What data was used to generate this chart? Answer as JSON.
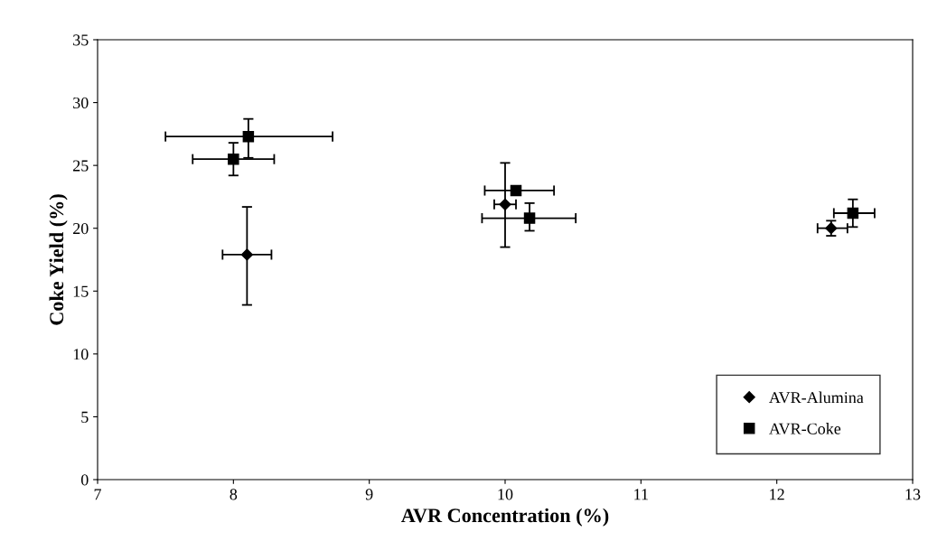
{
  "chart_data": {
    "type": "scatter",
    "xlabel": "AVR Concentration (%)",
    "ylabel": "Coke Yield (%)",
    "xlim": [
      7,
      13
    ],
    "xticks": [
      7,
      8,
      9,
      10,
      11,
      12,
      13
    ],
    "ylim": [
      0,
      35
    ],
    "yticks": [
      0,
      5,
      10,
      15,
      20,
      25,
      30,
      35
    ],
    "grid": false,
    "legend": "bottom right",
    "series": [
      {
        "name": "AVR-Alumina",
        "color": "#000000",
        "marker": "diamond",
        "x": [
          8.1,
          10.0,
          12.4
        ],
        "values": [
          17.9,
          21.9,
          20.0
        ],
        "errors": [
          [
            13.9,
            21.7
          ],
          [
            18.5,
            25.2
          ],
          [
            19.4,
            20.6
          ]
        ],
        "xerrors": [
          [
            7.92,
            8.28
          ],
          [
            9.92,
            10.08
          ],
          [
            12.3,
            12.52
          ]
        ]
      },
      {
        "name": "AVR-Coke",
        "color": "#000000",
        "marker": "square",
        "x": [
          8.11,
          8.0,
          10.08,
          10.18,
          12.56
        ],
        "values": [
          27.3,
          25.5,
          23.0,
          20.8,
          21.2
        ],
        "errors": [
          [
            25.6,
            28.7
          ],
          [
            24.2,
            26.8
          ],
          null,
          [
            19.8,
            22.0
          ],
          [
            20.1,
            22.3
          ]
        ],
        "xerrors": [
          [
            7.5,
            8.73
          ],
          [
            7.7,
            8.3
          ],
          [
            9.85,
            10.36
          ],
          [
            9.83,
            10.52
          ],
          [
            12.42,
            12.72
          ]
        ]
      }
    ]
  }
}
